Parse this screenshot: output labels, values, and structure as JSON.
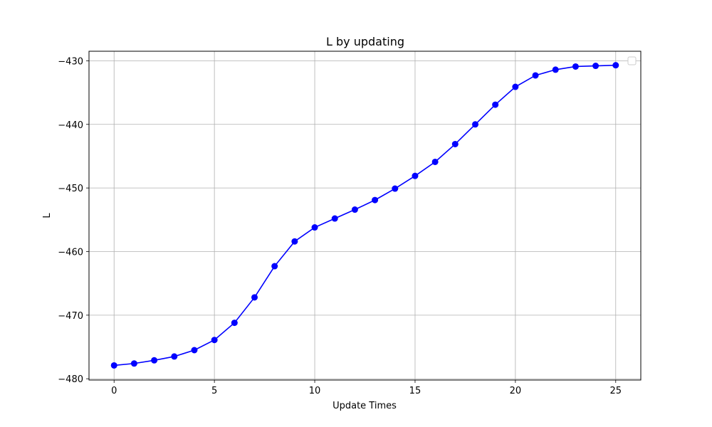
{
  "chart_data": {
    "type": "line",
    "title": "L by updating",
    "xlabel": "Update Times",
    "ylabel": "L",
    "xlim": [
      -1.25,
      26.25
    ],
    "ylim": [
      -480.2,
      -428.5
    ],
    "xticks": [
      0,
      5,
      10,
      15,
      20,
      25
    ],
    "yticks": [
      -480,
      -470,
      -460,
      -450,
      -440,
      -430
    ],
    "grid": true,
    "legend": "top-right (empty)",
    "series": [
      {
        "color": "#0000ff",
        "marker": "circle",
        "x": [
          0,
          1,
          2,
          3,
          4,
          5,
          6,
          7,
          8,
          9,
          10,
          11,
          12,
          13,
          14,
          15,
          16,
          17,
          18,
          19,
          20,
          21,
          22,
          23,
          24,
          25
        ],
        "y": [
          -477.9,
          -477.6,
          -477.1,
          -476.5,
          -475.5,
          -473.9,
          -471.2,
          -467.2,
          -462.3,
          -458.4,
          -456.2,
          -454.8,
          -453.4,
          -451.9,
          -450.1,
          -448.1,
          -445.9,
          -443.1,
          -440.0,
          -436.9,
          -434.1,
          -432.3,
          -431.4,
          -430.9,
          -430.8,
          -430.7
        ]
      }
    ]
  }
}
